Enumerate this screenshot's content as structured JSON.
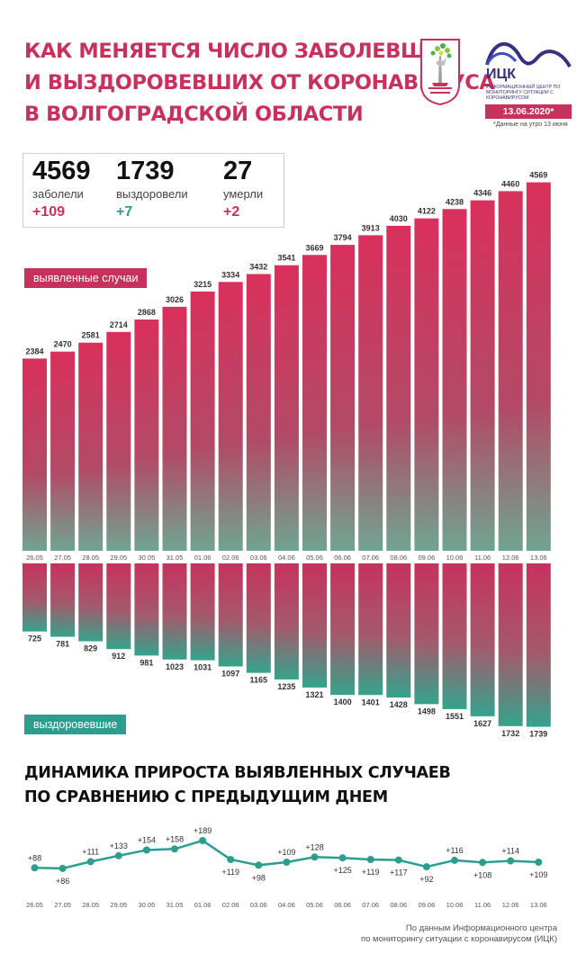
{
  "header": {
    "title_lines": [
      "КАК МЕНЯЕТСЯ ЧИСЛО ЗАБОЛЕВШИХ",
      "И ВЫЗДОРОВЕВШИХ ОТ КОРОНАВИРУСА",
      "В ВОЛГОГРАДСКОЙ ОБЛАСТИ"
    ],
    "org_name": "ИЦК",
    "org_desc": "Информационный центр по мониторингу ситуации с коронавирусом",
    "date": "13.06.2020*",
    "date_note": "*Данные на утро 13 июня"
  },
  "stats": {
    "cases": {
      "value": "4569",
      "label": "заболели",
      "delta": "+109"
    },
    "recovered": {
      "value": "1739",
      "label": "выздоровели",
      "delta": "+7"
    },
    "deaths": {
      "value": "27",
      "label": "умерли",
      "delta": "+2"
    }
  },
  "legend": {
    "cases": "выявленные случаи",
    "recovered": "выздоровевшие"
  },
  "colors": {
    "cases": "#c7325d",
    "recovered": "#2c9e8f",
    "line": "#2c9e8f"
  },
  "chart_data": [
    {
      "type": "bar",
      "categories": [
        "26.05",
        "27.05",
        "28.05",
        "29.05",
        "30.05",
        "31.05",
        "01.06",
        "02.06",
        "03.06",
        "04.06",
        "05.06",
        "06.06",
        "07.06",
        "08.06",
        "09.06",
        "10.06",
        "11.06",
        "12.06",
        "13.06"
      ],
      "series": [
        {
          "name": "выявленные случаи",
          "values": [
            2384,
            2470,
            2581,
            2714,
            2868,
            3026,
            3215,
            3334,
            3432,
            3541,
            3669,
            3794,
            3913,
            4030,
            4122,
            4238,
            4346,
            4460,
            4569
          ]
        },
        {
          "name": "выздоровевшие",
          "values": [
            725,
            781,
            829,
            912,
            981,
            1023,
            1031,
            1097,
            1165,
            1235,
            1321,
            1400,
            1401,
            1428,
            1498,
            1551,
            1627,
            1732,
            1739
          ]
        }
      ],
      "legend": "top-left"
    },
    {
      "type": "line",
      "title_lines": [
        "ДИНАМИКА ПРИРОСТА ВЫЯВЛЕННЫХ СЛУЧАЕВ",
        "ПО СРАВНЕНИЮ С ПРЕДЫДУЩИМ ДНЕМ"
      ],
      "categories": [
        "26.05",
        "27.05",
        "28.05",
        "29.05",
        "30.05",
        "31.05",
        "01.06",
        "02.06",
        "03.06",
        "04.06",
        "05.06",
        "06.06",
        "07.06",
        "08.06",
        "09.06",
        "10.06",
        "11.06",
        "12.06",
        "13.06"
      ],
      "values": [
        88,
        86,
        111,
        133,
        154,
        158,
        189,
        119,
        98,
        109,
        128,
        125,
        119,
        117,
        92,
        116,
        108,
        114,
        109
      ],
      "labels": [
        "+88",
        "+86",
        "+111",
        "+133",
        "+154",
        "+158",
        "+189",
        "+119",
        "+98",
        "+109",
        "+128",
        "+125",
        "+119",
        "+117",
        "+92",
        "+116",
        "+108",
        "+114",
        "+109"
      ]
    }
  ],
  "source": {
    "lines": [
      "По данным Информационного центра",
      "по мониторингу ситуации с коронавирусом (ИЦК)"
    ]
  }
}
